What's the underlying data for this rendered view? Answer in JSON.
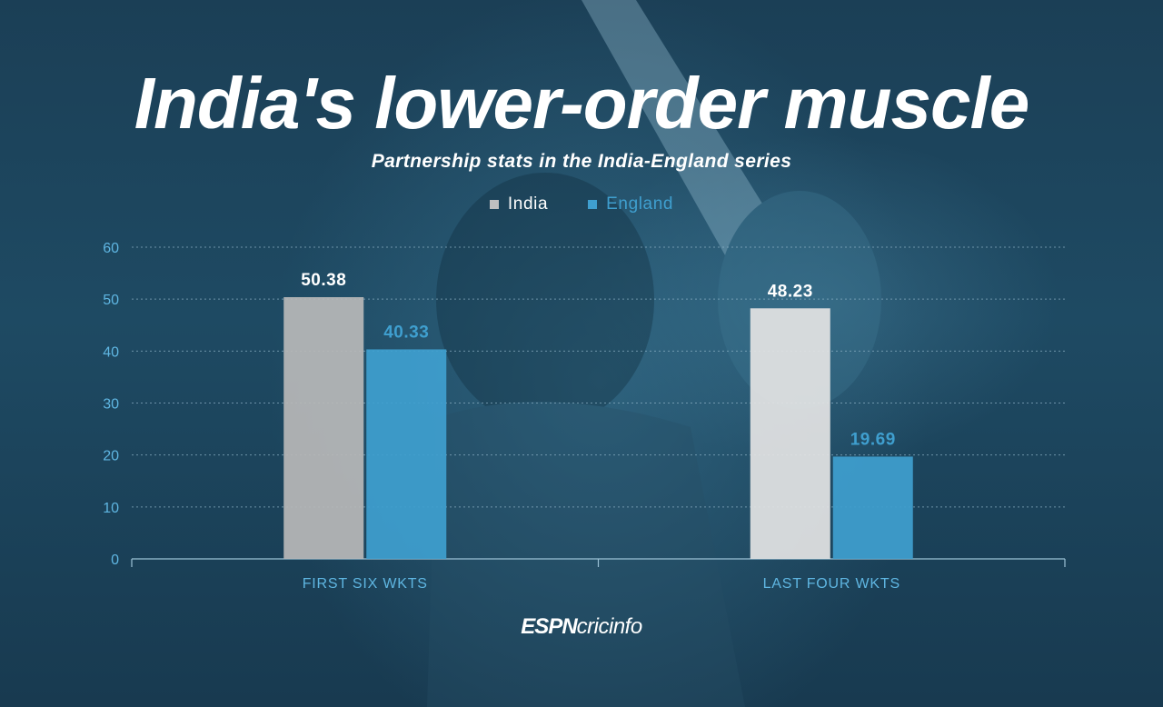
{
  "title": "India's lower-order muscle",
  "subtitle": "Partnership stats in the India-England series",
  "brand": {
    "espn": "ESPN",
    "cricinfo": "cricinfo"
  },
  "colors": {
    "india": "#bfbfbf",
    "england": "#3f9fcf",
    "axis": "#5fb6e2",
    "grid": "#8fb3c7"
  },
  "chart_data": {
    "type": "bar",
    "title": "India's lower-order muscle",
    "subtitle": "Partnership stats in the India-England series",
    "categories": [
      "FIRST SIX WKTS",
      "LAST FOUR WKTS"
    ],
    "series": [
      {
        "name": "India",
        "values": [
          50.38,
          48.23
        ],
        "labels": [
          "50.38",
          "48.23"
        ]
      },
      {
        "name": "England",
        "values": [
          40.33,
          19.69
        ],
        "labels": [
          "40.33",
          "19.69"
        ]
      }
    ],
    "yticks": [
      0,
      10,
      20,
      30,
      40,
      50,
      60
    ],
    "ylim": [
      0,
      60
    ],
    "xlabel": "",
    "ylabel": "",
    "grid": true,
    "legend": "top-center"
  }
}
